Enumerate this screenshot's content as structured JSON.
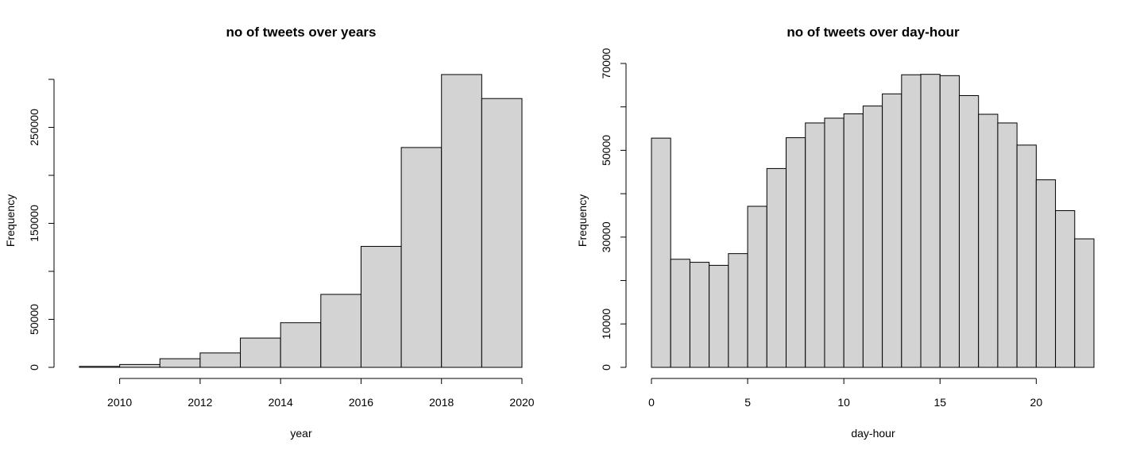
{
  "chart_data": [
    {
      "type": "bar",
      "title": "no of tweets over years",
      "xlabel": "year",
      "ylabel": "Frequency",
      "bins": [
        {
          "x0": 2009,
          "x1": 2010,
          "value": 1000
        },
        {
          "x0": 2010,
          "x1": 2011,
          "value": 3000
        },
        {
          "x0": 2011,
          "x1": 2012,
          "value": 9000
        },
        {
          "x0": 2012,
          "x1": 2013,
          "value": 15000
        },
        {
          "x0": 2013,
          "x1": 2014,
          "value": 30500
        },
        {
          "x0": 2014,
          "x1": 2015,
          "value": 46500
        },
        {
          "x0": 2015,
          "x1": 2016,
          "value": 76000
        },
        {
          "x0": 2016,
          "x1": 2017,
          "value": 126000
        },
        {
          "x0": 2017,
          "x1": 2018,
          "value": 229000
        },
        {
          "x0": 2018,
          "x1": 2019,
          "value": 305000
        },
        {
          "x0": 2019,
          "x1": 2020,
          "value": 280000
        }
      ],
      "xlim": [
        2009,
        2020
      ],
      "ylim": [
        0,
        300000
      ],
      "xticks": [
        {
          "value": 2010,
          "label": "2010"
        },
        {
          "value": 2012,
          "label": "2012"
        },
        {
          "value": 2014,
          "label": "2014"
        },
        {
          "value": 2016,
          "label": "2016"
        },
        {
          "value": 2018,
          "label": "2018"
        },
        {
          "value": 2020,
          "label": "2020"
        }
      ],
      "yticks": [
        {
          "value": 0,
          "label": "0"
        },
        {
          "value": 50000,
          "label": "50000"
        },
        {
          "value": 100000,
          "label": ""
        },
        {
          "value": 150000,
          "label": "150000"
        },
        {
          "value": 200000,
          "label": ""
        },
        {
          "value": 250000,
          "label": "250000"
        },
        {
          "value": 300000,
          "label": ""
        }
      ],
      "grid": false,
      "bar_color": "#d3d3d3"
    },
    {
      "type": "bar",
      "title": "no of tweets over day-hour",
      "xlabel": "day-hour",
      "ylabel": "Frequency",
      "bins": [
        {
          "x0": 0,
          "x1": 1,
          "value": 52800
        },
        {
          "x0": 1,
          "x1": 2,
          "value": 24900
        },
        {
          "x0": 2,
          "x1": 3,
          "value": 24200
        },
        {
          "x0": 3,
          "x1": 4,
          "value": 23500
        },
        {
          "x0": 4,
          "x1": 5,
          "value": 26200
        },
        {
          "x0": 5,
          "x1": 6,
          "value": 37100
        },
        {
          "x0": 6,
          "x1": 7,
          "value": 45800
        },
        {
          "x0": 7,
          "x1": 8,
          "value": 52900
        },
        {
          "x0": 8,
          "x1": 9,
          "value": 56300
        },
        {
          "x0": 9,
          "x1": 10,
          "value": 57400
        },
        {
          "x0": 10,
          "x1": 11,
          "value": 58400
        },
        {
          "x0": 11,
          "x1": 12,
          "value": 60200
        },
        {
          "x0": 12,
          "x1": 13,
          "value": 63000
        },
        {
          "x0": 13,
          "x1": 14,
          "value": 67400
        },
        {
          "x0": 14,
          "x1": 15,
          "value": 67500
        },
        {
          "x0": 15,
          "x1": 16,
          "value": 67200
        },
        {
          "x0": 16,
          "x1": 17,
          "value": 62600
        },
        {
          "x0": 17,
          "x1": 18,
          "value": 58300
        },
        {
          "x0": 18,
          "x1": 19,
          "value": 56300
        },
        {
          "x0": 19,
          "x1": 20,
          "value": 51200
        },
        {
          "x0": 20,
          "x1": 21,
          "value": 43200
        },
        {
          "x0": 21,
          "x1": 22,
          "value": 36100
        },
        {
          "x0": 22,
          "x1": 23,
          "value": 29600
        }
      ],
      "xlim": [
        0,
        23
      ],
      "ylim": [
        0,
        70000
      ],
      "xticks": [
        {
          "value": 0,
          "label": "0"
        },
        {
          "value": 5,
          "label": "5"
        },
        {
          "value": 10,
          "label": "10"
        },
        {
          "value": 15,
          "label": "15"
        },
        {
          "value": 20,
          "label": "20"
        }
      ],
      "yticks": [
        {
          "value": 0,
          "label": "0"
        },
        {
          "value": 10000,
          "label": "10000"
        },
        {
          "value": 20000,
          "label": ""
        },
        {
          "value": 30000,
          "label": "30000"
        },
        {
          "value": 40000,
          "label": ""
        },
        {
          "value": 50000,
          "label": "50000"
        },
        {
          "value": 60000,
          "label": ""
        },
        {
          "value": 70000,
          "label": "70000"
        }
      ],
      "grid": false,
      "bar_color": "#d3d3d3"
    }
  ]
}
